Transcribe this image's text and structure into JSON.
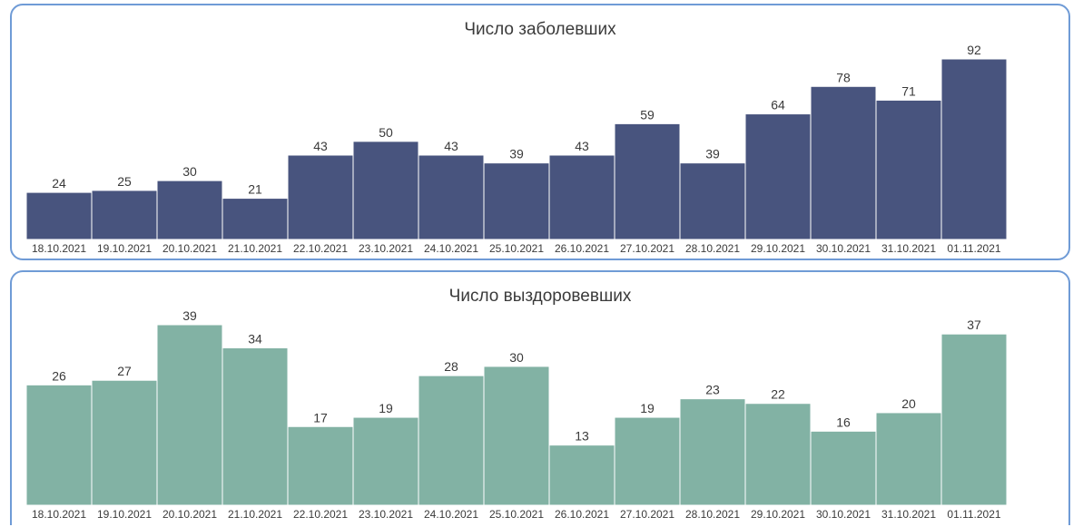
{
  "chart_data": [
    {
      "type": "bar",
      "title": "Число заболевших",
      "categories": [
        "18.10.2021",
        "19.10.2021",
        "20.10.2021",
        "21.10.2021",
        "22.10.2021",
        "23.10.2021",
        "24.10.2021",
        "25.10.2021",
        "26.10.2021",
        "27.10.2021",
        "28.10.2021",
        "29.10.2021",
        "30.10.2021",
        "31.10.2021",
        "01.11.2021"
      ],
      "values": [
        24,
        25,
        30,
        21,
        43,
        50,
        43,
        39,
        43,
        59,
        39,
        64,
        78,
        71,
        92
      ],
      "color": "#48547e",
      "ylim": [
        0,
        92
      ],
      "grid": false
    },
    {
      "type": "bar",
      "title": "Число выздоровевших",
      "categories": [
        "18.10.2021",
        "19.10.2021",
        "20.10.2021",
        "21.10.2021",
        "22.10.2021",
        "23.10.2021",
        "24.10.2021",
        "25.10.2021",
        "26.10.2021",
        "27.10.2021",
        "28.10.2021",
        "29.10.2021",
        "30.10.2021",
        "31.10.2021",
        "01.11.2021"
      ],
      "values": [
        26,
        27,
        39,
        34,
        17,
        19,
        28,
        30,
        13,
        19,
        23,
        22,
        16,
        20,
        37
      ],
      "color": "#82b2a4",
      "ylim": [
        0,
        39
      ],
      "grid": false
    }
  ]
}
